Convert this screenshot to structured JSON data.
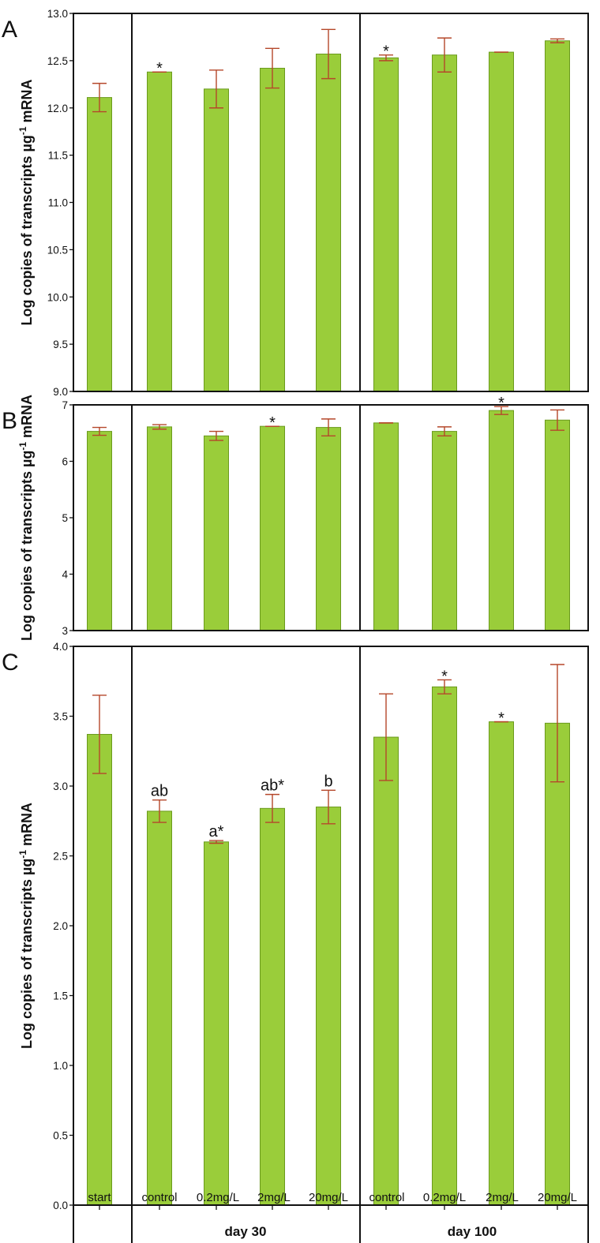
{
  "chart_data": {
    "type": "bar",
    "categories": [
      "start",
      "control",
      "0.2mg/L",
      "2mg/L",
      "20mg/L",
      "control",
      "0.2mg/L",
      "2mg/L",
      "20mg/L"
    ],
    "group_labels": [
      "day 30",
      "day 100"
    ],
    "colors": {
      "bar": "#9acd3a",
      "bar_edge": "#6a9a1c",
      "error": "#b5472a"
    },
    "panels": [
      {
        "label": "A",
        "ylabel": "Log copies of transcripts µg",
        "ylabel_sup": "-1",
        "ylabel_tail": " mRNA",
        "ylim": [
          9.0,
          13.0
        ],
        "yticks": [
          "9.0",
          "9.5",
          "10.0",
          "10.5",
          "11.0",
          "11.5",
          "12.0",
          "12.5",
          "13.0"
        ],
        "values": [
          12.11,
          12.38,
          12.2,
          12.42,
          12.57,
          12.53,
          12.56,
          12.59,
          12.71
        ],
        "errors": [
          0.15,
          0.0,
          0.2,
          0.21,
          0.26,
          0.03,
          0.18,
          0.0,
          0.02
        ],
        "annotations": [
          "",
          "*",
          "",
          "",
          "",
          "*",
          "",
          "",
          ""
        ]
      },
      {
        "label": "B",
        "ylabel": "Log copies of transcripts µg",
        "ylabel_sup": "-1",
        "ylabel_tail": " mRNA",
        "ylim": [
          3,
          7
        ],
        "yticks": [
          "3",
          "4",
          "5",
          "6",
          "7"
        ],
        "values": [
          6.53,
          6.61,
          6.45,
          6.62,
          6.6,
          6.68,
          6.53,
          6.9,
          6.73
        ],
        "errors": [
          0.07,
          0.04,
          0.08,
          0.0,
          0.15,
          0.0,
          0.08,
          0.07,
          0.18
        ],
        "annotations": [
          "",
          "",
          "",
          "*",
          "",
          "",
          "",
          "*",
          ""
        ]
      },
      {
        "label": "C",
        "ylabel": "Log copies of transcripts µg",
        "ylabel_sup": "-1",
        "ylabel_tail": " mRNA",
        "ylim": [
          0.0,
          4.0
        ],
        "yticks": [
          "0.0",
          "0.5",
          "1.0",
          "1.5",
          "2.0",
          "2.5",
          "3.0",
          "3.5",
          "4.0"
        ],
        "values": [
          3.37,
          2.82,
          2.6,
          2.84,
          2.85,
          3.35,
          3.71,
          3.46,
          3.45
        ],
        "errors": [
          0.28,
          0.08,
          0.01,
          0.1,
          0.12,
          0.31,
          0.05,
          0.0,
          0.42
        ],
        "annotations": [
          "",
          "ab",
          "a*",
          "ab*",
          "b",
          "",
          "*",
          "*",
          ""
        ]
      }
    ]
  }
}
